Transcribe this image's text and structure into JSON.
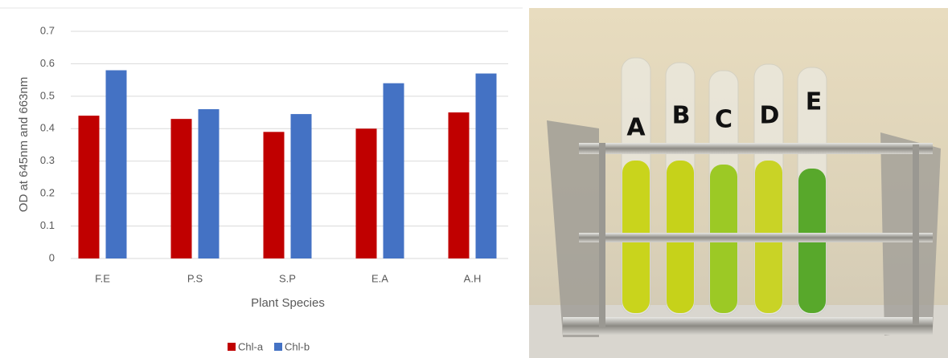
{
  "chart_data": {
    "type": "bar",
    "y_label": "OD at 645nm and 663nm",
    "x_label": "Plant Species",
    "categories": [
      "F.E",
      "P.S",
      "S.P",
      "E.A",
      "A.H"
    ],
    "series": [
      {
        "name": "Chl-a",
        "color": "#c00000",
        "values": [
          0.44,
          0.43,
          0.39,
          0.4,
          0.45
        ]
      },
      {
        "name": "Chl-b",
        "color": "#4472c4",
        "values": [
          0.58,
          0.46,
          0.445,
          0.54,
          0.57
        ]
      }
    ],
    "ylim": [
      0,
      0.7
    ],
    "yticks": [
      0,
      0.1,
      0.2,
      0.3,
      0.4,
      0.5,
      0.6,
      0.7
    ],
    "grid": true,
    "legend": "bottom"
  },
  "photo": {
    "tube_labels": [
      "A",
      "B",
      "C",
      "D",
      "E"
    ]
  }
}
